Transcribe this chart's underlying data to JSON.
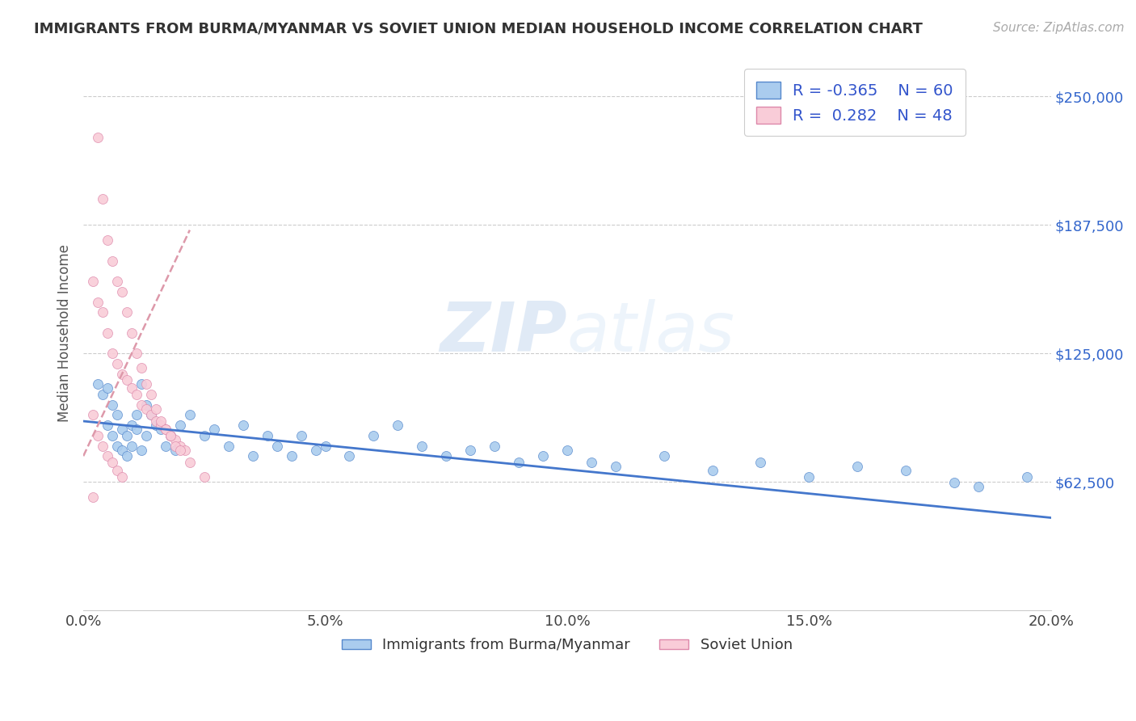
{
  "title": "IMMIGRANTS FROM BURMA/MYANMAR VS SOVIET UNION MEDIAN HOUSEHOLD INCOME CORRELATION CHART",
  "source": "Source: ZipAtlas.com",
  "ylabel": "Median Household Income",
  "xlim": [
    0.0,
    0.2
  ],
  "ylim": [
    0,
    270000
  ],
  "yticks": [
    62500,
    125000,
    187500,
    250000
  ],
  "ytick_labels": [
    "$62,500",
    "$125,000",
    "$187,500",
    "$250,000"
  ],
  "xticks": [
    0.0,
    0.05,
    0.1,
    0.15,
    0.2
  ],
  "xtick_labels": [
    "0.0%",
    "5.0%",
    "10.0%",
    "15.0%",
    "20.0%"
  ],
  "series1_name": "Immigrants from Burma/Myanmar",
  "series1_color": "#aaccee",
  "series1_edge_color": "#5588cc",
  "series1_R": -0.365,
  "series1_N": 60,
  "series1_line_color": "#4477cc",
  "series2_name": "Soviet Union",
  "series2_color": "#f9ccd8",
  "series2_edge_color": "#dd88aa",
  "series2_R": 0.282,
  "series2_N": 48,
  "series2_line_color": "#dd99aa",
  "legend_R_color": "#3355cc",
  "title_color": "#333333",
  "grid_color": "#cccccc",
  "background_color": "#ffffff",
  "blue_scatter_x": [
    0.003,
    0.004,
    0.005,
    0.005,
    0.006,
    0.006,
    0.007,
    0.007,
    0.008,
    0.008,
    0.009,
    0.009,
    0.01,
    0.01,
    0.011,
    0.011,
    0.012,
    0.012,
    0.013,
    0.013,
    0.014,
    0.015,
    0.016,
    0.017,
    0.018,
    0.019,
    0.02,
    0.022,
    0.025,
    0.027,
    0.03,
    0.033,
    0.035,
    0.038,
    0.04,
    0.043,
    0.045,
    0.048,
    0.05,
    0.055,
    0.06,
    0.065,
    0.07,
    0.075,
    0.08,
    0.085,
    0.09,
    0.095,
    0.1,
    0.105,
    0.11,
    0.12,
    0.13,
    0.14,
    0.15,
    0.16,
    0.17,
    0.18,
    0.185,
    0.195
  ],
  "blue_scatter_y": [
    110000,
    105000,
    108000,
    90000,
    100000,
    85000,
    95000,
    80000,
    88000,
    78000,
    85000,
    75000,
    90000,
    80000,
    88000,
    95000,
    110000,
    78000,
    100000,
    85000,
    95000,
    90000,
    88000,
    80000,
    85000,
    78000,
    90000,
    95000,
    85000,
    88000,
    80000,
    90000,
    75000,
    85000,
    80000,
    75000,
    85000,
    78000,
    80000,
    75000,
    85000,
    90000,
    80000,
    75000,
    78000,
    80000,
    72000,
    75000,
    78000,
    72000,
    70000,
    75000,
    68000,
    72000,
    65000,
    70000,
    68000,
    62000,
    60000,
    65000
  ],
  "pink_scatter_x": [
    0.002,
    0.003,
    0.004,
    0.005,
    0.006,
    0.007,
    0.008,
    0.009,
    0.01,
    0.011,
    0.012,
    0.013,
    0.014,
    0.015,
    0.016,
    0.017,
    0.018,
    0.019,
    0.02,
    0.021,
    0.003,
    0.004,
    0.005,
    0.006,
    0.007,
    0.008,
    0.009,
    0.01,
    0.011,
    0.012,
    0.013,
    0.014,
    0.015,
    0.016,
    0.017,
    0.018,
    0.019,
    0.02,
    0.022,
    0.025,
    0.002,
    0.003,
    0.004,
    0.005,
    0.006,
    0.007,
    0.008,
    0.002
  ],
  "pink_scatter_y": [
    160000,
    150000,
    145000,
    135000,
    125000,
    120000,
    115000,
    112000,
    108000,
    105000,
    100000,
    98000,
    95000,
    92000,
    90000,
    88000,
    85000,
    83000,
    80000,
    78000,
    230000,
    200000,
    180000,
    170000,
    160000,
    155000,
    145000,
    135000,
    125000,
    118000,
    110000,
    105000,
    98000,
    92000,
    88000,
    85000,
    80000,
    78000,
    72000,
    65000,
    95000,
    85000,
    80000,
    75000,
    72000,
    68000,
    65000,
    55000
  ],
  "blue_trendline_x": [
    0.0,
    0.2
  ],
  "blue_trendline_y": [
    92000,
    45000
  ],
  "pink_trendline_x": [
    0.0,
    0.022
  ],
  "pink_trendline_y": [
    75000,
    185000
  ]
}
